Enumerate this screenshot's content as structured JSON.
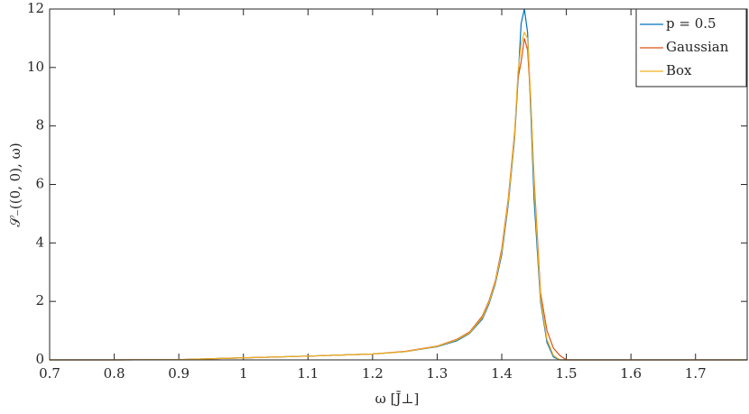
{
  "chart_data": {
    "type": "line",
    "x_label": "ω [J̄⊥]",
    "y_label": "𝒮₋((0, 0), ω)",
    "x": [
      0.7,
      0.8,
      0.9,
      1.0,
      1.1,
      1.2,
      1.25,
      1.3,
      1.33,
      1.35,
      1.37,
      1.38,
      1.39,
      1.4,
      1.41,
      1.42,
      1.425,
      1.43,
      1.435,
      1.44,
      1.445,
      1.45,
      1.46,
      1.47,
      1.48,
      1.49,
      1.5,
      1.6,
      1.7,
      1.78
    ],
    "series": [
      {
        "name": "p = 0.5",
        "color": "#0072bd",
        "values": [
          0,
          0,
          0.01,
          0.07,
          0.13,
          0.2,
          0.28,
          0.45,
          0.65,
          0.9,
          1.4,
          1.9,
          2.6,
          3.6,
          5.3,
          7.6,
          9.5,
          11.5,
          12,
          11.2,
          8.5,
          5.5,
          2,
          0.6,
          0.1,
          0,
          0,
          0,
          0,
          0
        ]
      },
      {
        "name": "Gaussian",
        "color": "#d95319",
        "values": [
          0,
          0,
          0.01,
          0.07,
          0.13,
          0.2,
          0.29,
          0.47,
          0.7,
          0.95,
          1.5,
          2.0,
          2.7,
          3.8,
          5.5,
          7.8,
          9.6,
          10.2,
          11.0,
          10.6,
          8.8,
          6.2,
          2.3,
          1.0,
          0.4,
          0.15,
          0,
          0,
          0,
          0
        ]
      },
      {
        "name": "Box",
        "color": "#edb120",
        "values": [
          0,
          0,
          0.01,
          0.07,
          0.13,
          0.2,
          0.28,
          0.46,
          0.68,
          0.92,
          1.45,
          1.95,
          2.65,
          3.7,
          5.4,
          7.7,
          9.8,
          10.8,
          11.2,
          11.0,
          8.9,
          6.0,
          2.1,
          0.7,
          0.15,
          0,
          0,
          0,
          0,
          0
        ]
      }
    ],
    "xlim": [
      0.7,
      1.78
    ],
    "xticks": [
      0.7,
      0.8,
      0.9,
      1,
      1.1,
      1.2,
      1.3,
      1.4,
      1.5,
      1.6,
      1.7
    ],
    "ylim": [
      0,
      12
    ],
    "yticks": [
      0,
      2,
      4,
      6,
      8,
      10,
      12
    ],
    "grid": false,
    "legend": "top-right"
  }
}
